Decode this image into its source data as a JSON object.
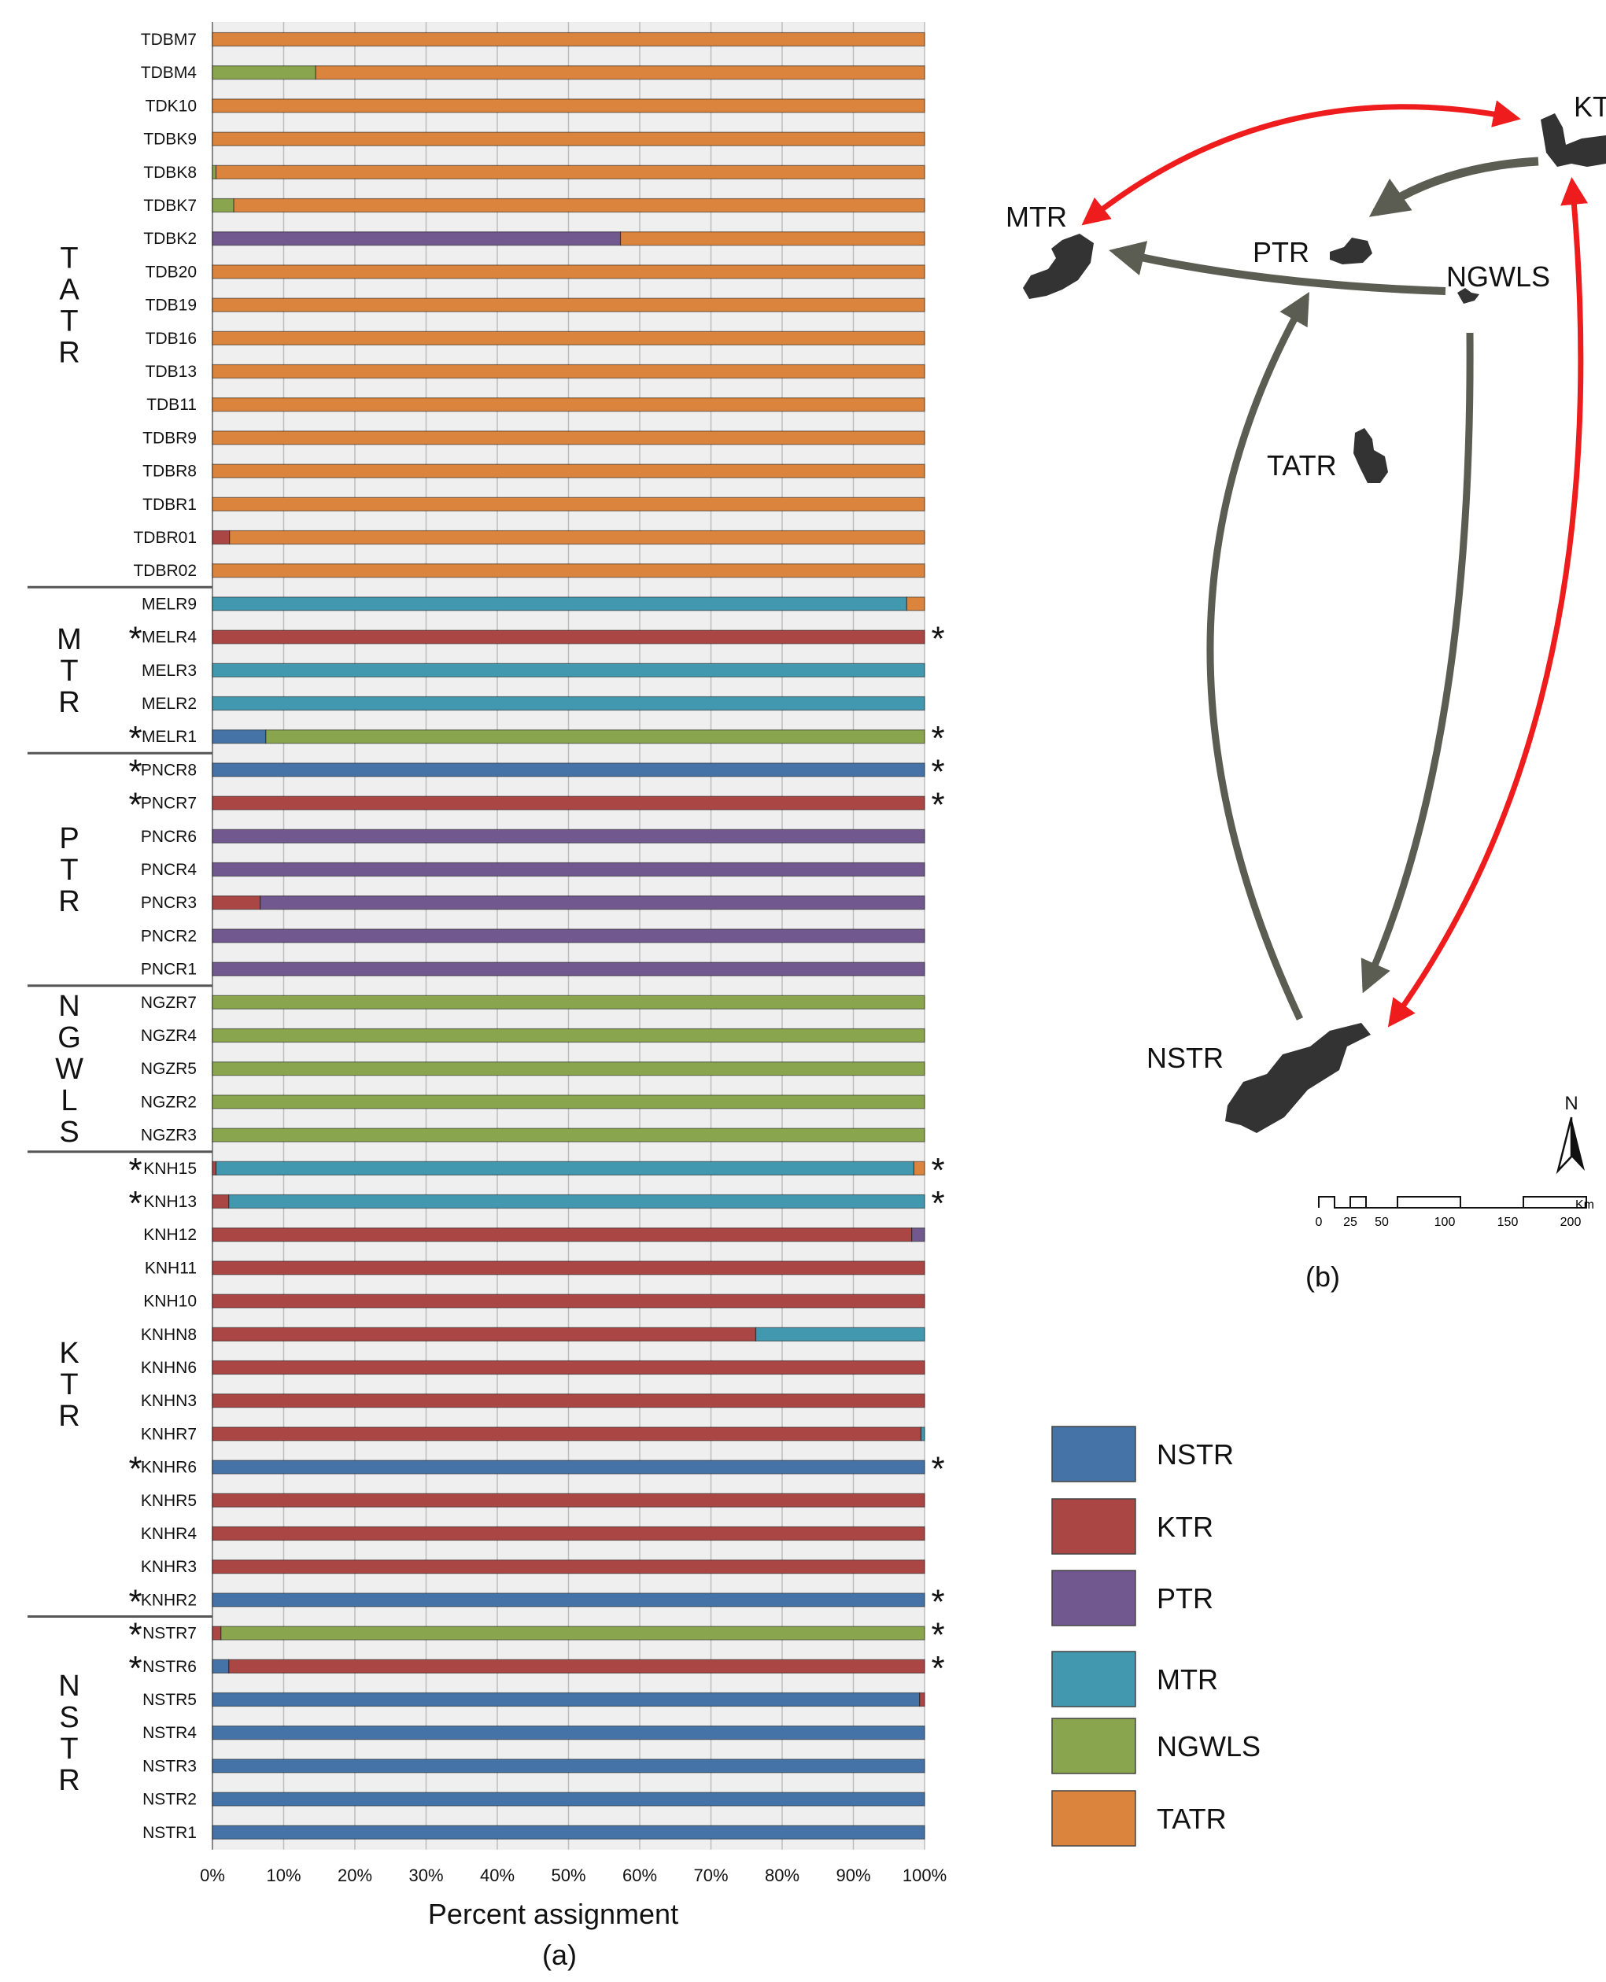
{
  "chart_data": {
    "type": "bar",
    "orientation": "horizontal",
    "stacked": true,
    "caption": "(a)",
    "xlabel": "Percent assignment",
    "xlim": [
      0,
      100
    ],
    "xticks": [
      "0%",
      "10%",
      "20%",
      "30%",
      "40%",
      "50%",
      "60%",
      "70%",
      "80%",
      "90%",
      "100%"
    ],
    "grid": true,
    "series_names": [
      "NSTR",
      "KTR",
      "PTR",
      "MTR",
      "NGWLS",
      "TATR"
    ],
    "colors": [
      "#4573a7",
      "#aa4643",
      "#71588f",
      "#4198af",
      "#89a54e",
      "#db843d"
    ],
    "groups": [
      {
        "name": "TATR",
        "rows": 17
      },
      {
        "name": "MTR",
        "rows": 5
      },
      {
        "name": "PTR",
        "rows": 7
      },
      {
        "name": "NGWLS",
        "rows": 5
      },
      {
        "name": "KTR",
        "rows": 14
      },
      {
        "name": "NSTR",
        "rows": 7
      }
    ],
    "marker": "*",
    "rows": [
      {
        "label": "TDBM7",
        "star": false,
        "values": [
          0,
          0,
          0,
          0,
          0,
          100
        ]
      },
      {
        "label": "TDBM4",
        "star": false,
        "values": [
          0,
          0,
          0,
          0,
          14.5,
          85.5
        ]
      },
      {
        "label": "TDK10",
        "star": false,
        "values": [
          0,
          0,
          0,
          0,
          0,
          100
        ]
      },
      {
        "label": "TDBK9",
        "star": false,
        "values": [
          0,
          0,
          0,
          0,
          0,
          100
        ]
      },
      {
        "label": "TDBK8",
        "star": false,
        "values": [
          0,
          0,
          0,
          0,
          0.5,
          99.5
        ]
      },
      {
        "label": "TDBK7",
        "star": false,
        "values": [
          0,
          0,
          0,
          0,
          3,
          97
        ]
      },
      {
        "label": "TDBK2",
        "star": false,
        "values": [
          0,
          0,
          57.3,
          0,
          0,
          42.7
        ]
      },
      {
        "label": "TDB20",
        "star": false,
        "values": [
          0,
          0,
          0,
          0,
          0,
          100
        ]
      },
      {
        "label": "TDB19",
        "star": false,
        "values": [
          0,
          0,
          0,
          0,
          0,
          100
        ]
      },
      {
        "label": "TDB16",
        "star": false,
        "values": [
          0,
          0,
          0,
          0,
          0,
          100
        ]
      },
      {
        "label": "TDB13",
        "star": false,
        "values": [
          0,
          0,
          0,
          0,
          0,
          100
        ]
      },
      {
        "label": "TDB11",
        "star": false,
        "values": [
          0,
          0,
          0,
          0,
          0,
          100
        ]
      },
      {
        "label": "TDBR9",
        "star": false,
        "values": [
          0,
          0,
          0,
          0,
          0,
          100
        ]
      },
      {
        "label": "TDBR8",
        "star": false,
        "values": [
          0,
          0,
          0,
          0,
          0,
          100
        ]
      },
      {
        "label": "TDBR1",
        "star": false,
        "values": [
          0,
          0,
          0,
          0,
          0,
          100
        ]
      },
      {
        "label": "TDBR01",
        "star": false,
        "values": [
          0,
          2.4,
          0,
          0,
          0,
          97.6
        ]
      },
      {
        "label": "TDBR02",
        "star": false,
        "values": [
          0,
          0,
          0,
          0,
          0,
          100
        ]
      },
      {
        "label": "MELR9",
        "star": false,
        "values": [
          0,
          0,
          0,
          97.5,
          0,
          2.5
        ]
      },
      {
        "label": "MELR4",
        "star": true,
        "values": [
          0,
          100,
          0,
          0,
          0,
          0
        ]
      },
      {
        "label": "MELR3",
        "star": false,
        "values": [
          0,
          0,
          0,
          100,
          0,
          0
        ]
      },
      {
        "label": "MELR2",
        "star": false,
        "values": [
          0,
          0,
          0,
          100,
          0,
          0
        ]
      },
      {
        "label": "MELR1",
        "star": true,
        "values": [
          7.5,
          0,
          0,
          0,
          92.5,
          0
        ]
      },
      {
        "label": "PNCR8",
        "star": true,
        "values": [
          100,
          0,
          0,
          0,
          0,
          0
        ]
      },
      {
        "label": "PNCR7",
        "star": true,
        "values": [
          0,
          100,
          0,
          0,
          0,
          0
        ]
      },
      {
        "label": "PNCR6",
        "star": false,
        "values": [
          0,
          0,
          100,
          0,
          0,
          0
        ]
      },
      {
        "label": "PNCR4",
        "star": false,
        "values": [
          0,
          0,
          100,
          0,
          0,
          0
        ]
      },
      {
        "label": "PNCR3",
        "star": false,
        "values": [
          0,
          6.7,
          93.3,
          0,
          0,
          0
        ]
      },
      {
        "label": "PNCR2",
        "star": false,
        "values": [
          0,
          0,
          100,
          0,
          0,
          0
        ]
      },
      {
        "label": "PNCR1",
        "star": false,
        "values": [
          0,
          0,
          100,
          0,
          0,
          0
        ]
      },
      {
        "label": "NGZR7",
        "star": false,
        "values": [
          0,
          0,
          0,
          0,
          100,
          0
        ]
      },
      {
        "label": "NGZR4",
        "star": false,
        "values": [
          0,
          0,
          0,
          0,
          100,
          0
        ]
      },
      {
        "label": "NGZR5",
        "star": false,
        "values": [
          0,
          0,
          0,
          0,
          100,
          0
        ]
      },
      {
        "label": "NGZR2",
        "star": false,
        "values": [
          0,
          0,
          0,
          0,
          100,
          0
        ]
      },
      {
        "label": "NGZR3",
        "star": false,
        "values": [
          0,
          0,
          0,
          0,
          100,
          0
        ]
      },
      {
        "label": "KNH15",
        "star": true,
        "values": [
          0,
          0.5,
          0,
          98,
          0,
          1.5
        ]
      },
      {
        "label": "KNH13",
        "star": true,
        "values": [
          0,
          2.3,
          0,
          97.7,
          0,
          0
        ]
      },
      {
        "label": "KNH12",
        "star": false,
        "values": [
          0,
          98.2,
          1.8,
          0,
          0,
          0
        ]
      },
      {
        "label": "KNH11",
        "star": false,
        "values": [
          0,
          100,
          0,
          0,
          0,
          0
        ]
      },
      {
        "label": "KNH10",
        "star": false,
        "values": [
          0,
          100,
          0,
          0,
          0,
          0
        ]
      },
      {
        "label": "KNHN8",
        "star": false,
        "values": [
          0,
          76.3,
          0,
          23.7,
          0,
          0
        ]
      },
      {
        "label": "KNHN6",
        "star": false,
        "values": [
          0,
          100,
          0,
          0,
          0,
          0
        ]
      },
      {
        "label": "KNHN3",
        "star": false,
        "values": [
          0,
          100,
          0,
          0,
          0,
          0
        ]
      },
      {
        "label": "KNHR7",
        "star": false,
        "values": [
          0,
          99.5,
          0,
          0.5,
          0,
          0
        ]
      },
      {
        "label": "KNHR6",
        "star": true,
        "values": [
          100,
          0,
          0,
          0,
          0,
          0
        ]
      },
      {
        "label": "KNHR5",
        "star": false,
        "values": [
          0,
          100,
          0,
          0,
          0,
          0
        ]
      },
      {
        "label": "KNHR4",
        "star": false,
        "values": [
          0,
          100,
          0,
          0,
          0,
          0
        ]
      },
      {
        "label": "KNHR3",
        "star": false,
        "values": [
          0,
          100,
          0,
          0,
          0,
          0
        ]
      },
      {
        "label": "KNHR2",
        "star": true,
        "values": [
          100,
          0,
          0,
          0,
          0,
          0
        ]
      },
      {
        "label": "NSTR7",
        "star": true,
        "values": [
          0,
          1.2,
          0,
          0,
          98.8,
          0
        ]
      },
      {
        "label": "NSTR6",
        "star": true,
        "values": [
          2.3,
          97.7,
          0,
          0,
          0,
          0
        ]
      },
      {
        "label": "NSTR5",
        "star": false,
        "values": [
          99.3,
          0.7,
          0,
          0,
          0,
          0
        ]
      },
      {
        "label": "NSTR4",
        "star": false,
        "values": [
          100,
          0,
          0,
          0,
          0,
          0
        ]
      },
      {
        "label": "NSTR3",
        "star": false,
        "values": [
          100,
          0,
          0,
          0,
          0,
          0
        ]
      },
      {
        "label": "NSTR2",
        "star": false,
        "values": [
          100,
          0,
          0,
          0,
          0,
          0
        ]
      },
      {
        "label": "NSTR1",
        "star": false,
        "values": [
          100,
          0,
          0,
          0,
          0,
          0
        ]
      }
    ]
  },
  "map": {
    "caption": "(b)",
    "regions": [
      "MTR",
      "PTR",
      "NGWLS",
      "KT",
      "TATR",
      "NSTR"
    ],
    "north_label": "N",
    "scale_ticks": [
      "0",
      "25",
      "50",
      "100",
      "150",
      "200"
    ],
    "scale_unit": "Km",
    "arrow_colors": {
      "bidirectional": "#ee1c1c",
      "unidirectional": "#5b5d52"
    }
  },
  "legend": {
    "items": [
      {
        "label": "NSTR",
        "color": "#4573a7"
      },
      {
        "label": "KTR",
        "color": "#aa4643"
      },
      {
        "label": "PTR",
        "color": "#71588f"
      },
      {
        "label": "MTR",
        "color": "#4198af"
      },
      {
        "label": "NGWLS",
        "color": "#89a54e"
      },
      {
        "label": "TATR",
        "color": "#db843d"
      }
    ]
  }
}
